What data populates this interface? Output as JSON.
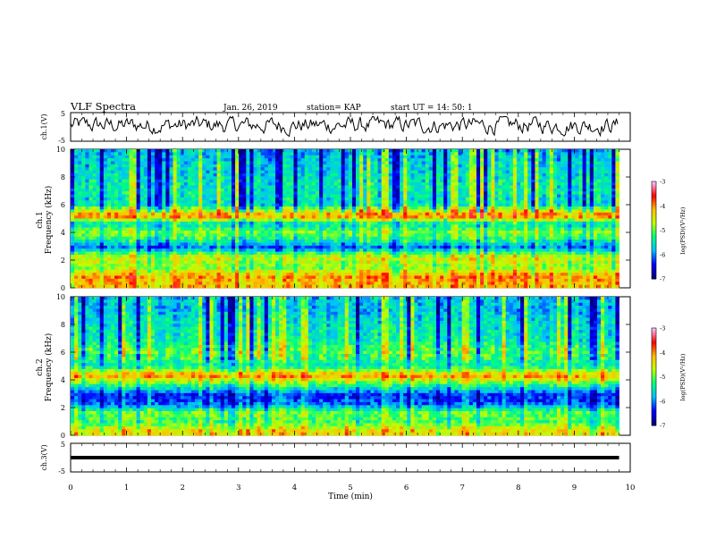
{
  "header": {
    "title": "VLF Spectra",
    "date": "Jan. 26, 2019",
    "station": "station= KAP",
    "start_ut": "start  UT =   14: 50: 1"
  },
  "panels": {
    "ch1_ylabel": "ch.1(V)",
    "spec1_ylabel_a": "ch.1",
    "spec1_ylabel_b": "Frequency (kHz)",
    "spec2_ylabel_a": "ch.2",
    "spec2_ylabel_b": "Frequency (kHz)",
    "ch3_ylabel": "ch.3(V)",
    "xlabel": "Time  (min)",
    "cb1_label": "log(PSD)(V²/Hz)",
    "cb2_label": "log(PSD)(V²/Hz)"
  },
  "colors": {
    "colormap": [
      "#00007f",
      "#0000ff",
      "#00bfff",
      "#00ff7f",
      "#bfff00",
      "#ffbf00",
      "#ff0000",
      "#ffc0ff"
    ],
    "trace": "#000000",
    "axis": "#000000"
  },
  "chart_data": [
    {
      "type": "line",
      "name": "ch.1 waveform",
      "xlim": [
        0,
        10
      ],
      "ylim": [
        -5,
        5
      ],
      "yticks": [
        -5,
        5
      ],
      "signal_extent_min": 9.8,
      "description_level": "noisy trace centred near 0 V, amplitude ~2-3 V"
    },
    {
      "type": "heatmap",
      "name": "ch.1 spectrogram",
      "xlim": [
        0,
        10
      ],
      "ylim": [
        0,
        10
      ],
      "yticks": [
        0,
        2,
        4,
        6,
        8,
        10
      ],
      "data_extent_min": 9.8,
      "colorbar": {
        "ticks": [
          -3,
          -4,
          -5,
          -6,
          -7
        ],
        "range": [
          -7,
          -3
        ]
      },
      "band_profile": [
        {
          "f": 0.25,
          "level": -4.2
        },
        {
          "f": 0.8,
          "level": -4.0
        },
        {
          "f": 1.5,
          "level": -4.9
        },
        {
          "f": 2.2,
          "level": -4.5
        },
        {
          "f": 2.9,
          "level": -6.1
        },
        {
          "f": 3.5,
          "level": -5.3
        },
        {
          "f": 4.0,
          "level": -4.9
        },
        {
          "f": 4.6,
          "level": -5.6
        },
        {
          "f": 5.2,
          "level": -3.8
        },
        {
          "f": 6.0,
          "level": -5.6
        },
        {
          "f": 7.0,
          "level": -5.5
        },
        {
          "f": 8.0,
          "level": -5.6
        },
        {
          "f": 9.0,
          "level": -5.7
        },
        {
          "f": 10.0,
          "level": -5.9
        }
      ]
    },
    {
      "type": "heatmap",
      "name": "ch.2 spectrogram",
      "xlim": [
        0,
        10
      ],
      "ylim": [
        0,
        10
      ],
      "yticks": [
        0,
        2,
        4,
        6,
        8,
        10
      ],
      "data_extent_min": 9.8,
      "colorbar": {
        "ticks": [
          -3,
          -4,
          -5,
          -6,
          -7
        ],
        "range": [
          -7,
          -3
        ]
      },
      "band_profile": [
        {
          "f": 0.3,
          "level": -4.4
        },
        {
          "f": 1.0,
          "level": -5.2
        },
        {
          "f": 1.6,
          "level": -5.0
        },
        {
          "f": 2.3,
          "level": -6.2
        },
        {
          "f": 2.9,
          "level": -6.4
        },
        {
          "f": 3.6,
          "level": -5.3
        },
        {
          "f": 4.3,
          "level": -4.0
        },
        {
          "f": 5.0,
          "level": -5.5
        },
        {
          "f": 6.0,
          "level": -5.1
        },
        {
          "f": 7.0,
          "level": -5.5
        },
        {
          "f": 8.0,
          "level": -5.6
        },
        {
          "f": 9.0,
          "level": -5.8
        },
        {
          "f": 10.0,
          "level": -5.8
        }
      ]
    },
    {
      "type": "line",
      "name": "ch.3 waveform",
      "xlim": [
        0,
        10
      ],
      "ylim": [
        -5,
        5
      ],
      "yticks": [
        -5,
        5
      ],
      "value": 0,
      "signal_extent_min": 9.8
    },
    {
      "type": "axis",
      "name": "time axis",
      "xticks": [
        0,
        1,
        2,
        3,
        4,
        5,
        6,
        7,
        8,
        9,
        10
      ],
      "xlabel": "Time  (min)"
    }
  ]
}
